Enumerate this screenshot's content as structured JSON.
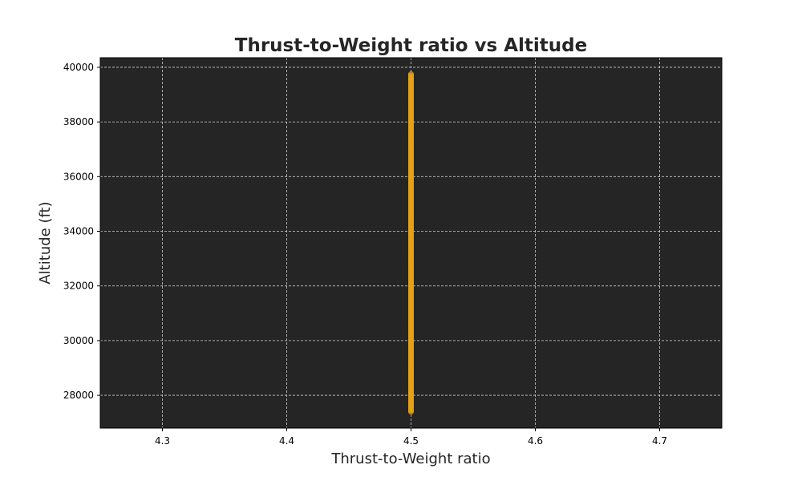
{
  "chart_data": {
    "type": "scatter",
    "title": "Thrust-to-Weight ratio vs Altitude",
    "xlabel": "Thrust-to-Weight ratio",
    "ylabel": "Altitude (ft)",
    "xlim": [
      4.25,
      4.75
    ],
    "ylim": [
      26800,
      40350
    ],
    "xticks": [
      "4.3",
      "4.4",
      "4.5",
      "4.6",
      "4.7"
    ],
    "yticks": [
      "28000",
      "30000",
      "32000",
      "34000",
      "36000",
      "38000",
      "40000"
    ],
    "grid": true,
    "colors": {
      "plot_background": "#252525",
      "grid": "#cccccc",
      "marker": "#e8a317"
    },
    "series": [
      {
        "x": [
          4.5
        ],
        "y_range": [
          27400,
          39750
        ],
        "y_step": 50
      }
    ]
  }
}
